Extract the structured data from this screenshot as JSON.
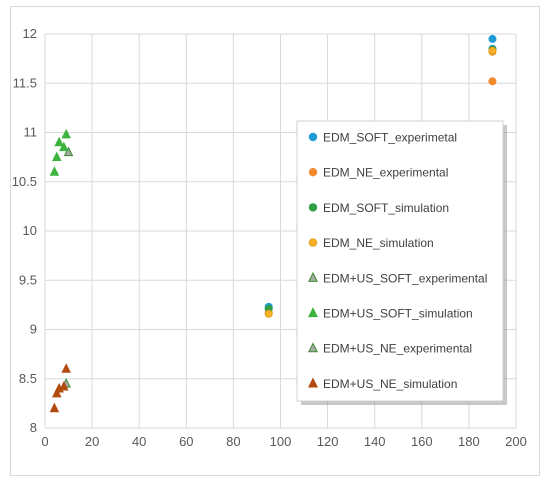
{
  "chart_data": {
    "type": "scatter",
    "xlim": [
      0,
      200
    ],
    "ylim": [
      8,
      12
    ],
    "x_ticks": [
      "0",
      "20",
      "40",
      "60",
      "80",
      "100",
      "120",
      "140",
      "160",
      "180",
      "200"
    ],
    "y_ticks": [
      "8",
      "8.5",
      "9",
      "9.5",
      "10",
      "10.5",
      "11",
      "11.5",
      "12"
    ],
    "grid": "vertical and horizontal",
    "legend_position": "right",
    "series": [
      {
        "name": "EDM_SOFT_experimetal",
        "marker": "circle",
        "color": "#1f9bd6",
        "edge": "#1f9bd6",
        "points": [
          [
            95,
            9.23
          ],
          [
            190,
            11.95
          ],
          [
            190,
            11.85
          ]
        ]
      },
      {
        "name": "EDM_NE_experimental",
        "marker": "circle",
        "color": "#f08a2c",
        "edge": "#f08a2c",
        "points": [
          [
            95,
            9.17
          ],
          [
            190,
            11.52
          ],
          [
            190,
            11.82
          ]
        ]
      },
      {
        "name": "EDM_SOFT_simulation",
        "marker": "circle",
        "color": "#2f9e44",
        "edge": "#2f9e44",
        "points": [
          [
            95,
            9.21
          ],
          [
            190,
            11.84
          ]
        ]
      },
      {
        "name": "EDM_NE_simulation",
        "marker": "circle",
        "color": "#f6b126",
        "edge": "#e09a10",
        "points": [
          [
            95,
            9.16
          ],
          [
            190,
            11.83
          ]
        ]
      },
      {
        "name": "EDM+US_SOFT_experimental",
        "marker": "triangle",
        "color": "#a6a6a6",
        "edge": "#3f8f2f",
        "points": [
          [
            10,
            10.8
          ]
        ]
      },
      {
        "name": "EDM+US_SOFT_simulation",
        "marker": "triangle",
        "color": "#3cb33c",
        "edge": "#3cb33c",
        "points": [
          [
            4,
            10.6
          ],
          [
            5,
            10.75
          ],
          [
            6,
            10.9
          ],
          [
            8,
            10.85
          ],
          [
            9,
            10.98
          ]
        ]
      },
      {
        "name": "EDM+US_NE_experimental",
        "marker": "triangle",
        "color": "#a6a6a6",
        "edge": "#3f8f2f",
        "points": [
          [
            9,
            8.45
          ]
        ]
      },
      {
        "name": "EDM+US_NE_simulation",
        "marker": "triangle",
        "color": "#b34a0e",
        "edge": "#b34a0e",
        "points": [
          [
            4,
            8.2
          ],
          [
            5,
            8.35
          ],
          [
            6,
            8.4
          ],
          [
            8,
            8.42
          ],
          [
            9,
            8.6
          ]
        ]
      }
    ]
  }
}
